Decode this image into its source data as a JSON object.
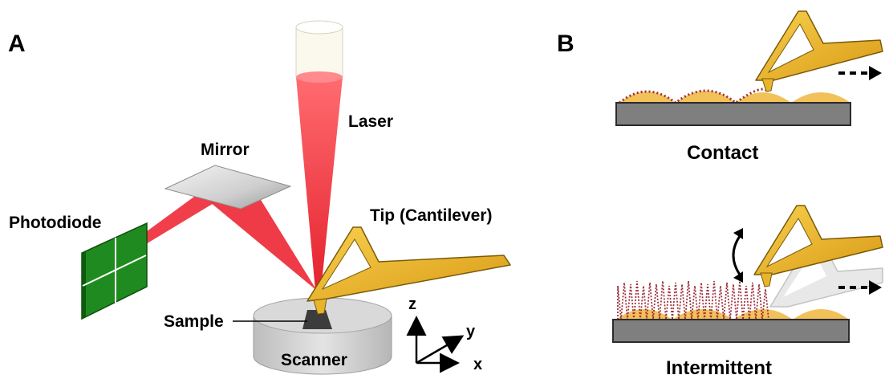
{
  "panel_a": {
    "letter": "A",
    "labels": {
      "laser": "Laser",
      "mirror": "Mirror",
      "photodiode": "Photodiode",
      "tip": "Tip (Cantilever)",
      "sample": "Sample",
      "scanner": "Scanner"
    },
    "axes": {
      "z": "z",
      "y": "y",
      "x": "x"
    }
  },
  "panel_b": {
    "letter": "B",
    "modes": {
      "contact": "Contact",
      "intermittent": "Intermittent"
    }
  },
  "colors": {
    "laser": "#ee2a37",
    "cantilever": "#e8b42a",
    "cantilever_edge": "#7a5a0a",
    "photodiode": "#1f8a1f",
    "sample_bumps": "#f3c15a",
    "substrate": "#7f7f7f",
    "trace": "#a0303a"
  }
}
